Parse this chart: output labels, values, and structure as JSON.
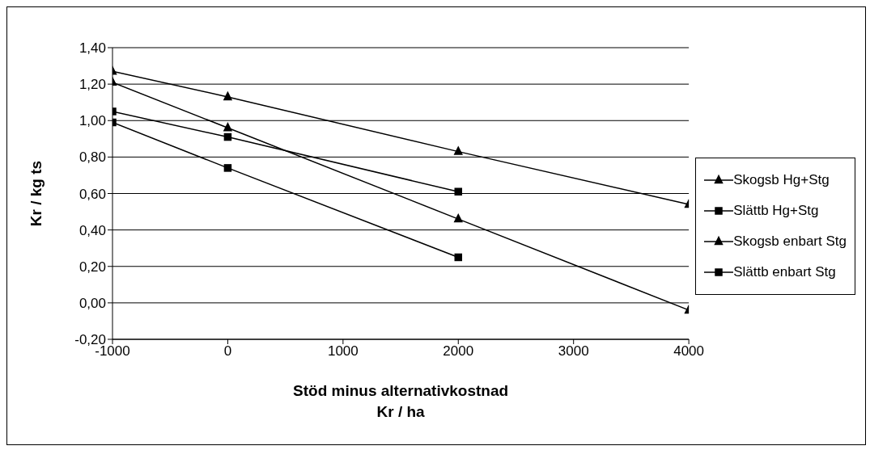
{
  "chart_data": {
    "type": "line",
    "xlabel": "Stöd minus alternativkostnad\nKr / ha",
    "ylabel": "Kr / kg ts",
    "x": [
      -1000,
      0,
      2000,
      4000
    ],
    "xlim": [
      -1000,
      4000
    ],
    "xticks": [
      -1000,
      0,
      1000,
      2000,
      3000,
      4000
    ],
    "ylim": [
      -0.2,
      1.4
    ],
    "yticks": [
      {
        "value": -0.2,
        "label": "-0,20"
      },
      {
        "value": 0,
        "label": "0,00"
      },
      {
        "value": 0.2,
        "label": "0,20"
      },
      {
        "value": 0.4,
        "label": "0,40"
      },
      {
        "value": 0.6,
        "label": "0,60"
      },
      {
        "value": 0.8,
        "label": "0,80"
      },
      {
        "value": 1.0,
        "label": "1,00"
      },
      {
        "value": 1.2,
        "label": "1,20"
      },
      {
        "value": 1.4,
        "label": "1,40"
      }
    ],
    "grid": "y",
    "legend": "right",
    "line_style": "solid",
    "series": [
      {
        "name": "Skogsb Hg+Stg",
        "color": "#000000",
        "marker": "triangle",
        "values": [
          1.27,
          1.13,
          0.83,
          0.54
        ]
      },
      {
        "name": "Slättb Hg+Stg",
        "color": "#000000",
        "marker": "square",
        "values": [
          1.05,
          0.91,
          0.61,
          null
        ]
      },
      {
        "name": "Skogsb enbart Stg",
        "color": "#000000",
        "marker": "triangle",
        "values": [
          1.21,
          0.96,
          0.46,
          -0.04
        ]
      },
      {
        "name": "Slättb enbart Stg",
        "color": "#000000",
        "marker": "square",
        "values": [
          0.99,
          0.74,
          0.25,
          null
        ]
      }
    ]
  }
}
